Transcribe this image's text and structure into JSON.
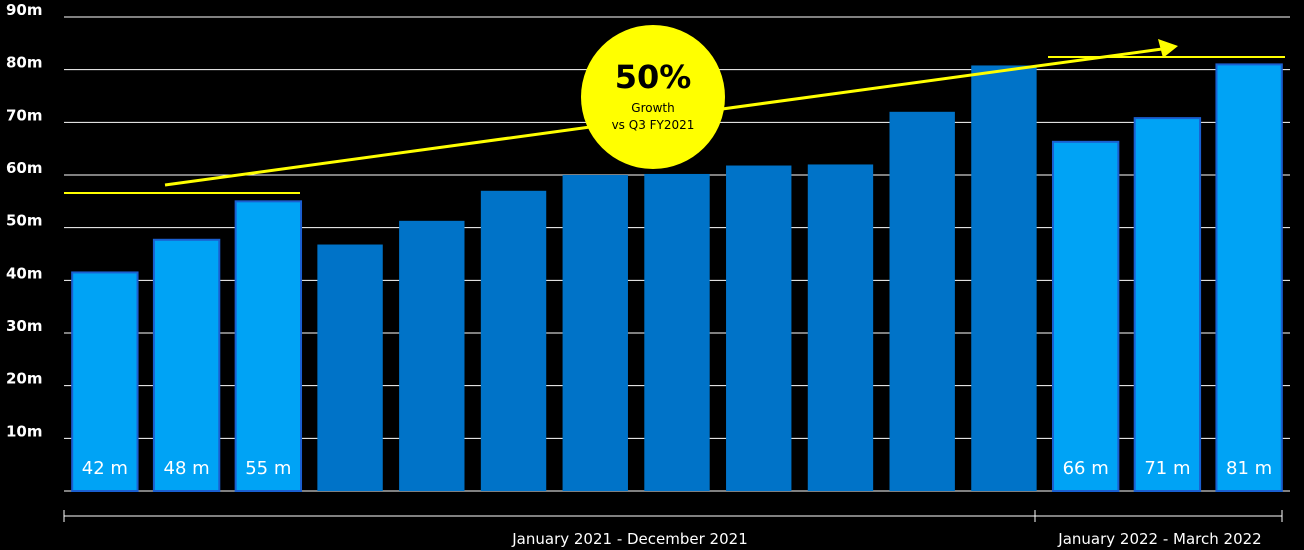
{
  "chart_data": {
    "type": "bar",
    "y_tick_labels": [
      "10m",
      "20m",
      "30m",
      "40m",
      "50m",
      "60m",
      "70m",
      "80m",
      "90m"
    ],
    "y_tick_values": [
      10,
      20,
      30,
      40,
      50,
      60,
      70,
      80,
      90
    ],
    "ylim": [
      0,
      90
    ],
    "grid": true,
    "values": [
      41.5,
      47.7,
      55,
      46.8,
      51.3,
      57,
      60,
      60.2,
      61.8,
      62,
      72,
      80.8,
      66.3,
      70.8,
      81
    ],
    "bar_styles": [
      "highlight",
      "highlight",
      "highlight",
      "base",
      "base",
      "base",
      "base",
      "base",
      "base",
      "base",
      "base",
      "base",
      "highlight",
      "highlight",
      "highlight"
    ],
    "data_labels": [
      "42 m",
      "48 m",
      "55 m",
      "",
      "",
      "",
      "",
      "",
      "",
      "",
      "",
      "",
      "66 m",
      "71 m",
      "81 m"
    ],
    "ranges": [
      {
        "label": "January 2021 - December 2021",
        "from": 0,
        "to": 11
      },
      {
        "label": "January 2022 - March 2022",
        "from": 12,
        "to": 14
      }
    ],
    "annotation": {
      "headline": "50%",
      "line1": "Growth",
      "line2": "vs Q3 FY2021"
    },
    "colors": {
      "highlight": "#00a3f5",
      "base": "#0073c8",
      "annotation": "#ffff00",
      "grid": "#ffffff",
      "background": "#000000"
    }
  }
}
